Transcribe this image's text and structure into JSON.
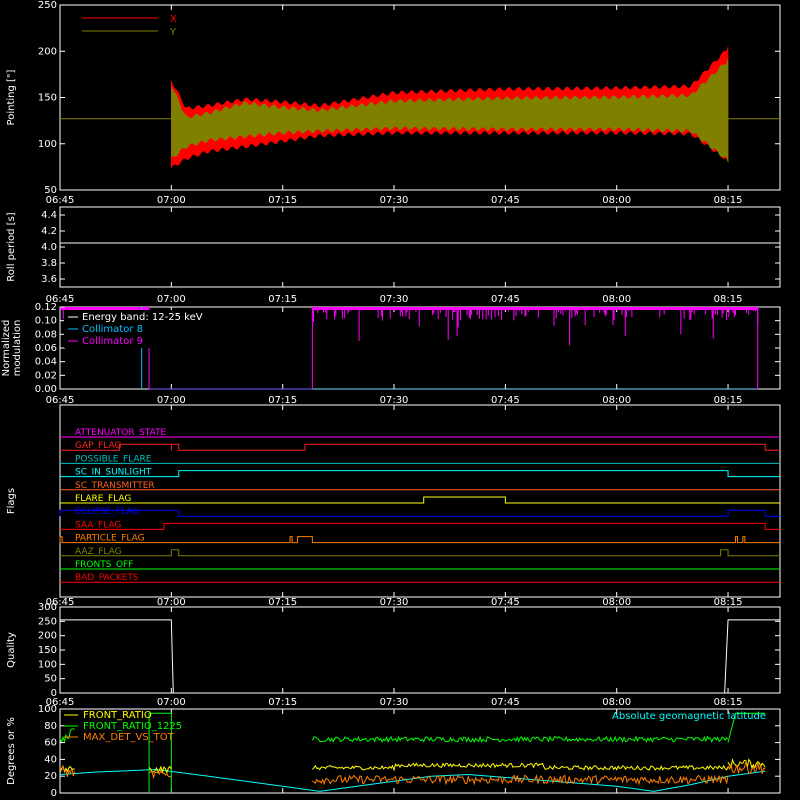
{
  "time_ticks": [
    "06:45",
    "07:00",
    "07:15",
    "07:30",
    "07:45",
    "08:00",
    "08:15"
  ],
  "chart_data": [
    {
      "type": "line",
      "id": "pointing",
      "ylabel": "Pointing [\"]",
      "ylim": [
        50,
        250
      ],
      "yticks": [
        "50",
        "100",
        "150",
        "200",
        "250"
      ],
      "legend": [
        {
          "name": "X",
          "color": "#ff0000"
        },
        {
          "name": "Y",
          "color": "#808000"
        }
      ],
      "reference_line": 127,
      "envelope": {
        "x": [
          "07:00",
          "07:02",
          "07:05",
          "07:10",
          "07:15",
          "07:20",
          "07:30",
          "07:45",
          "08:00",
          "08:10",
          "08:15"
        ],
        "x_upper": [
          170,
          140,
          143,
          150,
          147,
          143,
          157,
          161,
          162,
          164,
          205
        ],
        "x_lower": [
          72,
          82,
          90,
          95,
          101,
          107,
          110,
          110,
          110,
          109,
          80
        ],
        "y_upper": [
          165,
          130,
          135,
          146,
          141,
          138,
          148,
          151,
          152,
          154,
          192
        ],
        "y_lower": [
          82,
          95,
          102,
          106,
          110,
          112,
          115,
          114,
          114,
          112,
          80
        ]
      }
    },
    {
      "type": "line",
      "id": "roll",
      "ylabel": "Roll period [s]",
      "ylim": [
        3.5,
        4.5
      ],
      "yticks": [
        "3.6",
        "3.8",
        "4.0",
        "4.2",
        "4.4"
      ],
      "value": 4.05
    },
    {
      "type": "line",
      "id": "modulation",
      "ylabel": "Normalized\nmodulation",
      "ylim": [
        0,
        0.12
      ],
      "yticks": [
        "0.00",
        "0.02",
        "0.04",
        "0.06",
        "0.08",
        "0.10",
        "0.12"
      ],
      "legend": [
        {
          "name": "Energy band: 12-25 keV",
          "color": "#ffffff"
        },
        {
          "name": "Collimator 8",
          "color": "#00c0ff"
        },
        {
          "name": "Collimator 9",
          "color": "#ff00ff"
        }
      ]
    },
    {
      "type": "line",
      "id": "flags",
      "ylabel": "Flags",
      "flags": [
        {
          "name": "ATTENUATOR_STATE",
          "color": "#ff00ff",
          "steps": []
        },
        {
          "name": "GAP_FLAG",
          "color": "#ff2020",
          "steps": [
            [
              "06:53",
              "07:00"
            ],
            [
              "07:00",
              "07:01"
            ],
            [
              "07:18",
              "08:20"
            ]
          ]
        },
        {
          "name": "POSSIBLE_FLARE",
          "color": "#00c0c0",
          "steps": []
        },
        {
          "name": "SC_IN_SUNLIGHT",
          "color": "#00ffff",
          "steps": [
            [
              "07:01",
              "08:15"
            ]
          ]
        },
        {
          "name": "SC_TRANSMITTER",
          "color": "#ff6020",
          "steps": []
        },
        {
          "name": "FLARE_FLAG",
          "color": "#ffff00",
          "steps": [
            [
              "07:34",
              "07:45"
            ]
          ]
        },
        {
          "name": "ECLIPSE_FLAG",
          "color": "#0000ff",
          "steps": [
            [
              "06:45",
              "07:01"
            ],
            [
              "08:15",
              "08:20"
            ]
          ]
        },
        {
          "name": "SAA_FLAG",
          "color": "#ff0000",
          "steps": [
            [
              "06:59",
              "08:20"
            ]
          ]
        },
        {
          "name": "PARTICLE_FLAG",
          "color": "#ff8000",
          "steps": [
            [
              "06:45",
              "06:45"
            ],
            [
              "07:16",
              "07:16"
            ],
            [
              "07:17",
              "07:19"
            ],
            [
              "08:16",
              "08:16"
            ],
            [
              "08:17",
              "08:17"
            ]
          ]
        },
        {
          "name": "AAZ_FLAG",
          "color": "#808000",
          "steps": [
            [
              "07:00",
              "07:01"
            ],
            [
              "08:14",
              "08:15"
            ]
          ]
        },
        {
          "name": "FRONTS_OFF",
          "color": "#00ff00",
          "steps": []
        },
        {
          "name": "BAD_PACKETS",
          "color": "#ff0000",
          "steps": []
        }
      ]
    },
    {
      "type": "line",
      "id": "quality",
      "ylabel": "Quality",
      "ylim": [
        0,
        300
      ],
      "yticks": [
        "0",
        "50",
        "100",
        "150",
        "200",
        "250",
        "300"
      ],
      "value_high": 255
    },
    {
      "type": "line",
      "id": "ratios",
      "ylabel": "Degrees or %",
      "ylim": [
        0,
        100
      ],
      "yticks": [
        "0",
        "20",
        "40",
        "60",
        "80",
        "100"
      ],
      "legend": [
        {
          "name": "FRONT_RATIO",
          "color": "#ffff00"
        },
        {
          "name": "FRONT_RATIO_1225",
          "color": "#00ff00"
        },
        {
          "name": "MAX_DET_VS_TOT",
          "color": "#ff8000"
        },
        {
          "name": "Absolute geomagnetic latitude",
          "color": "#00ffff"
        }
      ]
    }
  ]
}
